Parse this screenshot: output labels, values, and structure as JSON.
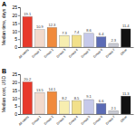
{
  "chart_data": [
    {
      "type": "bar",
      "title": "A",
      "y_label": "Median time, days",
      "categories": [
        "All cases",
        "Group 1",
        "Group 2",
        "Group 3",
        "Group 4",
        "Group 5",
        "Group 6",
        "Group 7",
        "Other"
      ],
      "values": [
        19.1,
        10.9,
        12.3,
        7.3,
        7.4,
        8.6,
        6.4,
        2.3,
        11.4
      ],
      "colors": [
        "#e8392b",
        "#f2d9cc",
        "#f08a3c",
        "#f7eeb0",
        "#f2e08a",
        "#c6c9ea",
        "#5b6bb5",
        "#c9cbd4",
        "#111111"
      ],
      "ylim": [
        0,
        25
      ],
      "yticks": [
        0,
        5,
        10,
        15,
        20,
        25
      ],
      "grid": false,
      "data_labels": true
    },
    {
      "type": "bar",
      "title": "B",
      "y_label": "Median cost, USD",
      "categories": [
        "All cases",
        "Group 1",
        "Group 2",
        "Group 3",
        "Group 4",
        "Group 5",
        "Group 6",
        "Group 7",
        "Other"
      ],
      "values": [
        20.2,
        13.5,
        14.1,
        8.2,
        8.5,
        9.1,
        6.6,
        2.1,
        11.3
      ],
      "colors": [
        "#e8392b",
        "#f2d9cc",
        "#f08a3c",
        "#f7eeb0",
        "#f2e08a",
        "#c6c9ea",
        "#5b6bb5",
        "#c9cbd4",
        "#111111"
      ],
      "ylim": [
        0,
        25
      ],
      "yticks": [
        0,
        5,
        10,
        15,
        20,
        25
      ],
      "grid": false,
      "data_labels": true
    }
  ]
}
